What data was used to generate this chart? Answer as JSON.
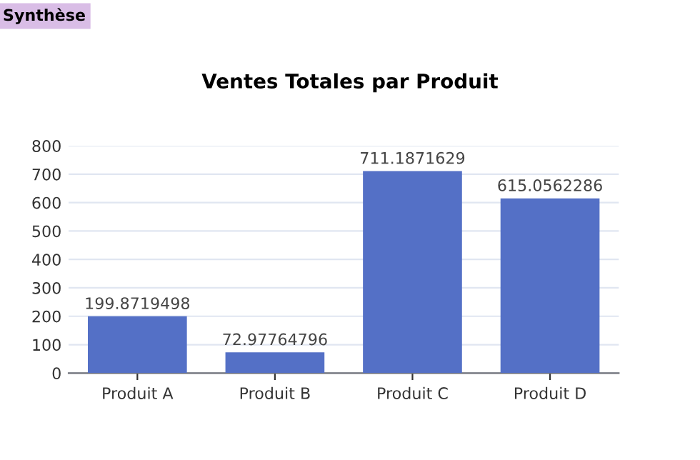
{
  "chart_data": {
    "type": "bar",
    "title": "Ventes Totales par Produit",
    "categories": [
      "Produit A",
      "Produit B",
      "Produit C",
      "Produit D"
    ],
    "values": [
      199.8719498,
      72.97764796,
      711.1871629,
      615.0562286
    ],
    "color": "#5470c6",
    "ylim": [
      0,
      800
    ],
    "yticks": [
      0,
      100,
      200,
      300,
      400,
      500,
      600,
      700,
      800
    ],
    "grid": "y",
    "data_labels": true,
    "annotations": [
      "Synthèse"
    ]
  }
}
